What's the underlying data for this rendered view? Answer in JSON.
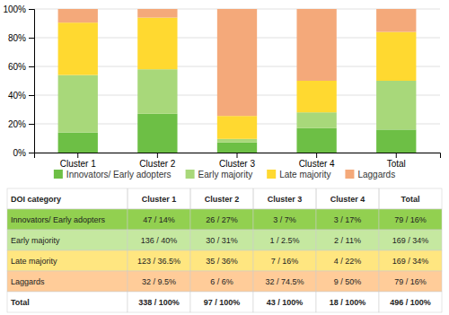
{
  "chart_data": {
    "type": "bar",
    "stacked": true,
    "categories": [
      "Cluster 1",
      "Cluster 2",
      "Cluster 3",
      "Cluster 4",
      "Total"
    ],
    "series": [
      {
        "name": "Innovators/ Early adopters",
        "color": "#6DBF45",
        "values": [
          14,
          27,
          7,
          17,
          16
        ]
      },
      {
        "name": "Early majority",
        "color": "#A8D87A",
        "values": [
          40,
          31,
          2.5,
          11,
          34
        ]
      },
      {
        "name": "Late majority",
        "color": "#FFD930",
        "values": [
          36.5,
          36,
          16,
          22,
          34
        ]
      },
      {
        "name": "Laggards",
        "color": "#F4A97A",
        "values": [
          9.5,
          6,
          74.5,
          50,
          16
        ]
      }
    ],
    "ylim": [
      0,
      100
    ],
    "yticks": [
      {
        "value": 0,
        "label": "0%"
      },
      {
        "value": 20,
        "label": "20%"
      },
      {
        "value": 40,
        "label": "40%"
      },
      {
        "value": 60,
        "label": "60%"
      },
      {
        "value": 80,
        "label": "80%"
      },
      {
        "value": 100,
        "label": "100%"
      }
    ],
    "grid": true,
    "legend": "bottom",
    "table": {
      "headers": [
        "DOI category",
        "Cluster 1",
        "Cluster 2",
        "Cluster 3",
        "Cluster 4",
        "Total"
      ],
      "rows": [
        [
          "Innovators/ Early adopters",
          "47 / 14%",
          "26 / 27%",
          "3 / 7%",
          "3 / 17%",
          "79 / 16%"
        ],
        [
          "Early majority",
          "136 / 40%",
          "30 / 31%",
          "1 / 2.5%",
          "2 / 11%",
          "169 / 34%"
        ],
        [
          "Late majority",
          "123 / 36.5%",
          "35 / 36%",
          "7 / 16%",
          "4 / 22%",
          "169 / 34%"
        ],
        [
          "Laggards",
          "32 / 9.5%",
          "6 / 6%",
          "32 / 74.5%",
          "9 / 50%",
          "79 / 16%"
        ],
        [
          "Total",
          "338 / 100%",
          "97 / 100%",
          "43 / 100%",
          "18 / 100%",
          "496 / 100%"
        ]
      ],
      "colors": [
        "#92D050",
        "#C5E8A0",
        "#FFE680",
        "#FFCC99",
        "#FFFFFF"
      ]
    }
  }
}
